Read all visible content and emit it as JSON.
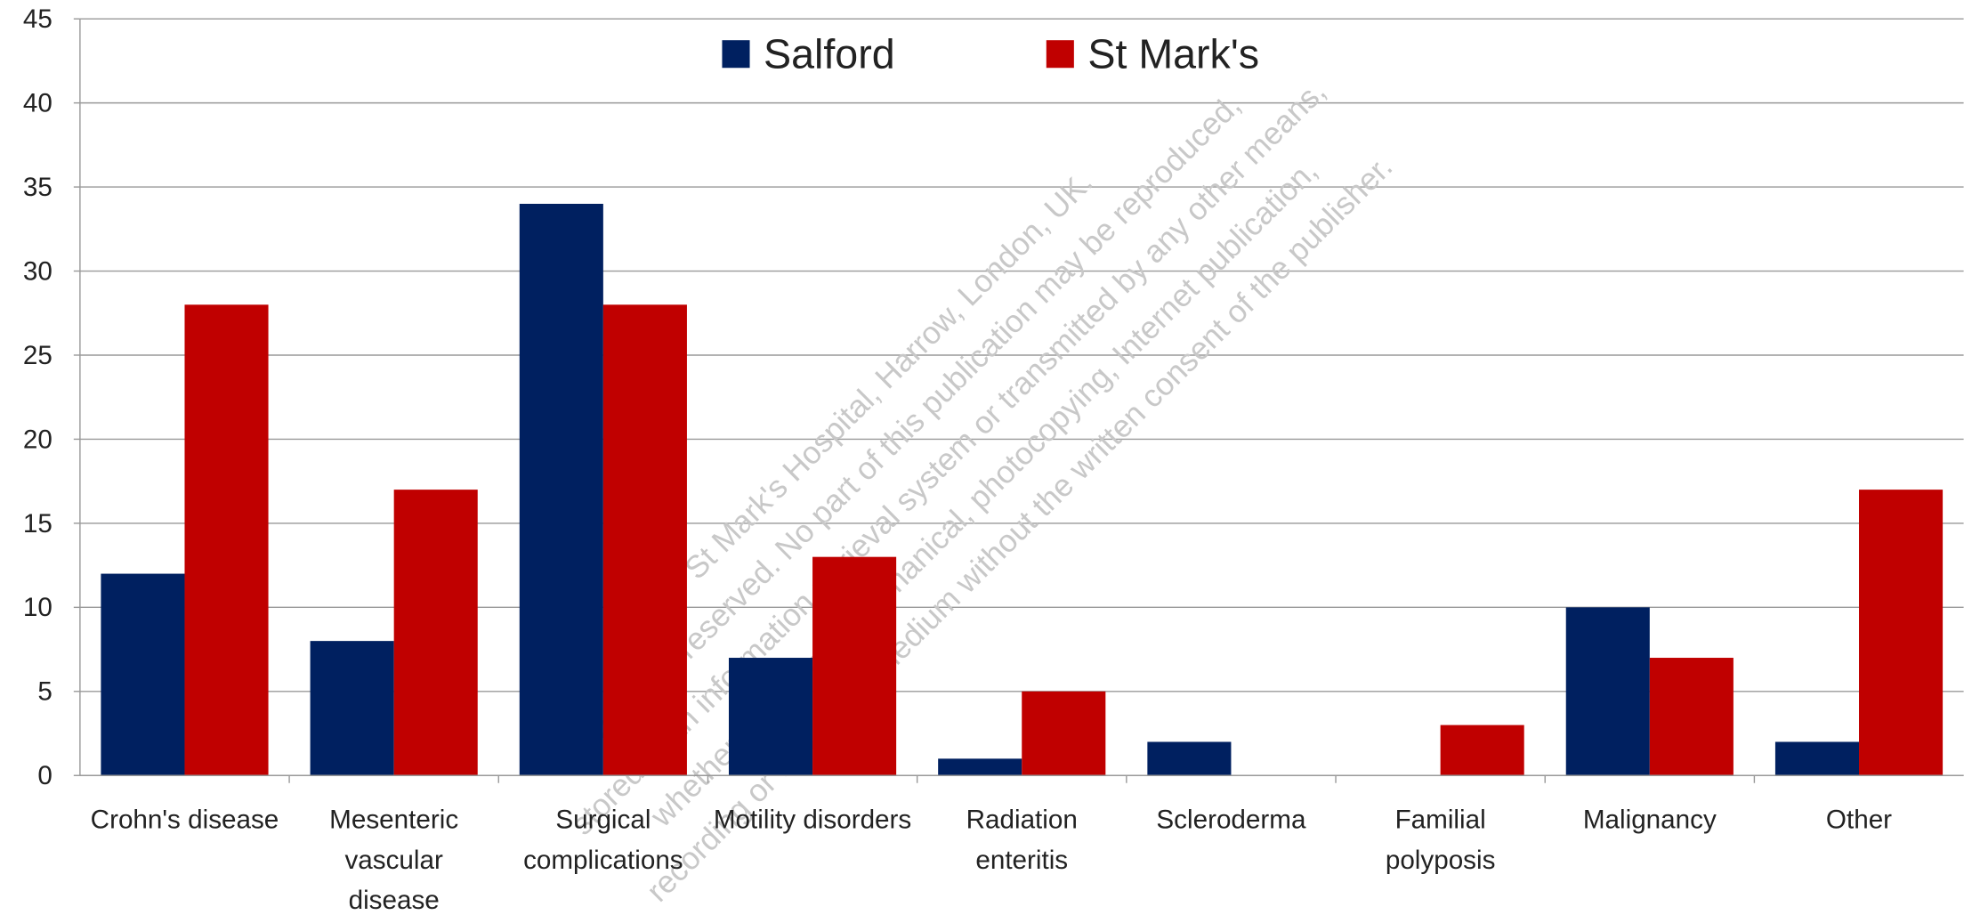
{
  "chart_data": {
    "type": "bar",
    "categories": [
      "Crohn's disease",
      "Mesenteric vascular disease",
      "Surgical complications",
      "Motility disorders",
      "Radiation enteritis",
      "Scleroderma",
      "Familial polyposis",
      "Malignancy",
      "Other"
    ],
    "series": [
      {
        "name": "Salford",
        "color": "#002060",
        "values": [
          12,
          8,
          34,
          7,
          1,
          2,
          0,
          10,
          2
        ]
      },
      {
        "name": "St Mark's",
        "color": "#c00000",
        "values": [
          28,
          17,
          28,
          13,
          5,
          0,
          3,
          7,
          17
        ]
      }
    ],
    "ylim": [
      0,
      45
    ],
    "yticks": [
      0,
      5,
      10,
      15,
      20,
      25,
      30,
      35,
      40,
      45
    ],
    "grid": true,
    "legend": "top",
    "watermark": [
      "© St Mark's Hospital, Harrow, London, UK.",
      "All rights reserved. No part of this publication may be reproduced,",
      "stored in an information retrieval system or transmitted by any other means,",
      "whether electronic, mechanical, photocopying, Internet publication,",
      "recording or any other medium without the written consent of the publisher."
    ]
  }
}
